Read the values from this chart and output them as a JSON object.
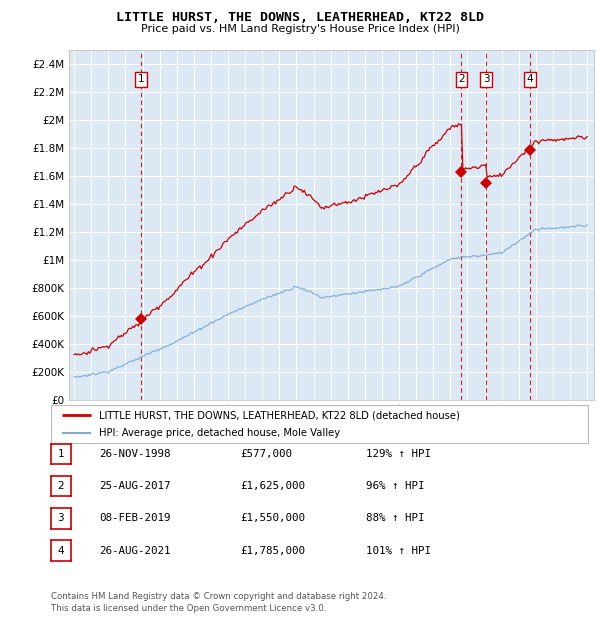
{
  "title": "LITTLE HURST, THE DOWNS, LEATHERHEAD, KT22 8LD",
  "subtitle": "Price paid vs. HM Land Registry's House Price Index (HPI)",
  "legend_line1": "LITTLE HURST, THE DOWNS, LEATHERHEAD, KT22 8LD (detached house)",
  "legend_line2": "HPI: Average price, detached house, Mole Valley",
  "footer1": "Contains HM Land Registry data © Crown copyright and database right 2024.",
  "footer2": "This data is licensed under the Open Government Licence v3.0.",
  "sale_color": "#cc0000",
  "hpi_color": "#7aabdb",
  "plot_bg": "#dce9f5",
  "ylim": [
    0,
    2500000
  ],
  "yticks": [
    0,
    200000,
    400000,
    600000,
    800000,
    1000000,
    1200000,
    1400000,
    1600000,
    1800000,
    2000000,
    2200000,
    2400000
  ],
  "ytick_labels": [
    "£0",
    "£200K",
    "£400K",
    "£600K",
    "£800K",
    "£1M",
    "£1.2M",
    "£1.4M",
    "£1.6M",
    "£1.8M",
    "£2M",
    "£2.2M",
    "£2.4M"
  ],
  "sales": [
    {
      "date_num": 1998.9,
      "price": 577000,
      "label": "1"
    },
    {
      "date_num": 2017.65,
      "price": 1625000,
      "label": "2"
    },
    {
      "date_num": 2019.1,
      "price": 1550000,
      "label": "3"
    },
    {
      "date_num": 2021.65,
      "price": 1785000,
      "label": "4"
    }
  ],
  "sale_table": [
    {
      "num": "1",
      "date": "26-NOV-1998",
      "price": "£577,000",
      "hpi": "129% ↑ HPI"
    },
    {
      "num": "2",
      "date": "25-AUG-2017",
      "price": "£1,625,000",
      "hpi": "96% ↑ HPI"
    },
    {
      "num": "3",
      "date": "08-FEB-2019",
      "price": "£1,550,000",
      "hpi": "88% ↑ HPI"
    },
    {
      "num": "4",
      "date": "26-AUG-2021",
      "price": "£1,785,000",
      "hpi": "101% ↑ HPI"
    }
  ]
}
